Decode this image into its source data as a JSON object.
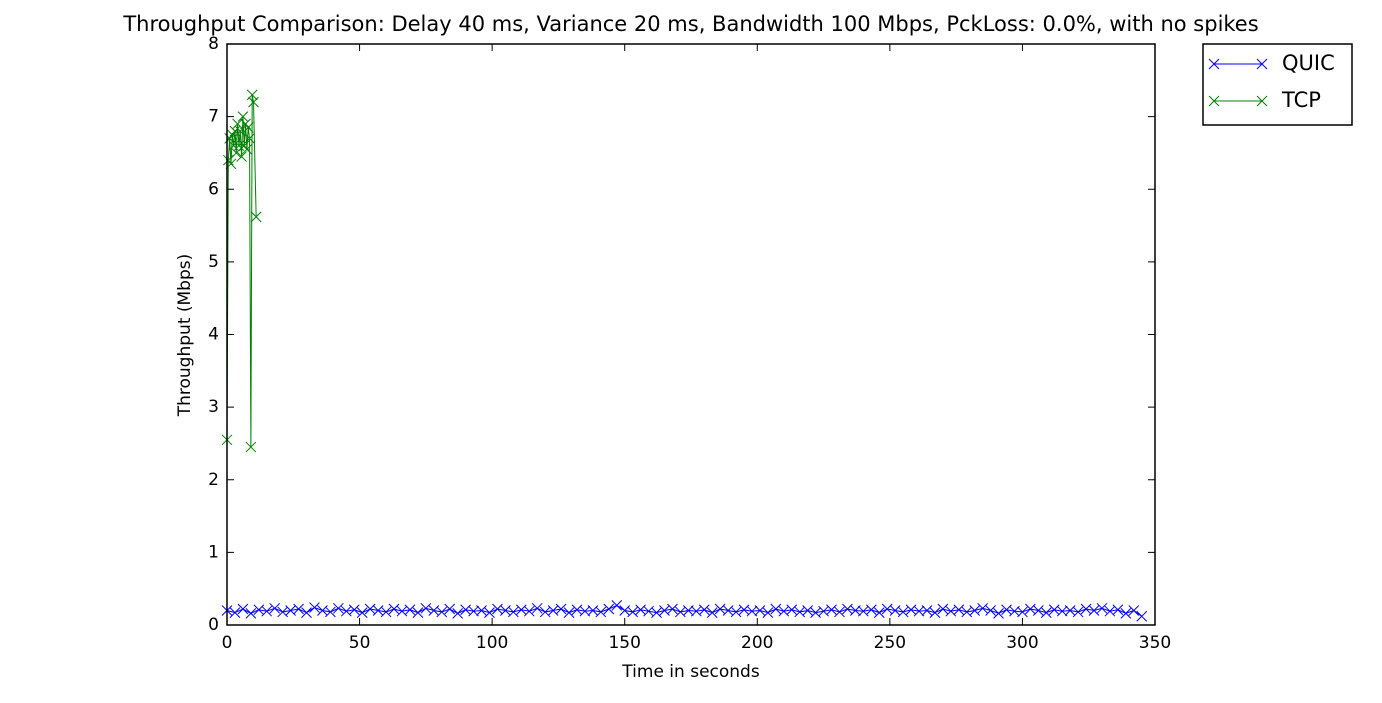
{
  "chart_data": {
    "type": "line",
    "title": "Throughput Comparison: Delay 40 ms, Variance 20 ms, Bandwidth 100 Mbps, PckLoss: 0.0%, with no spikes",
    "xlabel": "Time in seconds",
    "ylabel": "Throughput (Mbps)",
    "xlim": [
      0,
      350
    ],
    "ylim": [
      0,
      8
    ],
    "xticks": [
      0,
      50,
      100,
      150,
      200,
      250,
      300,
      350
    ],
    "yticks": [
      0,
      1,
      2,
      3,
      4,
      5,
      6,
      7,
      8
    ],
    "legend": "outside-upper-right",
    "series": [
      {
        "name": "QUIC",
        "color": "#0000ff",
        "x": [
          0,
          3,
          6,
          9,
          12,
          15,
          18,
          21,
          24,
          27,
          30,
          33,
          36,
          39,
          42,
          45,
          48,
          51,
          54,
          57,
          60,
          63,
          66,
          69,
          72,
          75,
          78,
          81,
          84,
          87,
          90,
          93,
          96,
          99,
          102,
          105,
          108,
          111,
          114,
          117,
          120,
          123,
          126,
          129,
          132,
          135,
          138,
          141,
          144,
          147,
          150,
          153,
          156,
          159,
          162,
          165,
          168,
          171,
          174,
          177,
          180,
          183,
          186,
          189,
          192,
          195,
          198,
          201,
          204,
          207,
          210,
          213,
          216,
          219,
          222,
          225,
          228,
          231,
          234,
          237,
          240,
          243,
          246,
          249,
          252,
          255,
          258,
          261,
          264,
          267,
          270,
          273,
          276,
          279,
          282,
          285,
          288,
          291,
          294,
          297,
          300,
          303,
          306,
          309,
          312,
          315,
          318,
          321,
          324,
          327,
          330,
          333,
          336,
          339,
          342,
          345
        ],
        "values": [
          0.2,
          0.17,
          0.22,
          0.16,
          0.21,
          0.19,
          0.23,
          0.18,
          0.2,
          0.22,
          0.17,
          0.24,
          0.2,
          0.18,
          0.23,
          0.19,
          0.21,
          0.17,
          0.22,
          0.2,
          0.18,
          0.22,
          0.19,
          0.21,
          0.17,
          0.23,
          0.2,
          0.18,
          0.22,
          0.16,
          0.21,
          0.19,
          0.2,
          0.17,
          0.22,
          0.2,
          0.18,
          0.21,
          0.19,
          0.23,
          0.18,
          0.2,
          0.22,
          0.17,
          0.21,
          0.19,
          0.2,
          0.18,
          0.22,
          0.27,
          0.2,
          0.18,
          0.21,
          0.19,
          0.17,
          0.2,
          0.22,
          0.18,
          0.2,
          0.19,
          0.21,
          0.17,
          0.22,
          0.2,
          0.18,
          0.21,
          0.19,
          0.2,
          0.17,
          0.22,
          0.19,
          0.21,
          0.18,
          0.2,
          0.17,
          0.19,
          0.21,
          0.18,
          0.22,
          0.2,
          0.19,
          0.21,
          0.17,
          0.22,
          0.2,
          0.18,
          0.21,
          0.19,
          0.2,
          0.17,
          0.22,
          0.19,
          0.21,
          0.18,
          0.2,
          0.23,
          0.2,
          0.16,
          0.21,
          0.19,
          0.18,
          0.22,
          0.2,
          0.17,
          0.21,
          0.19,
          0.2,
          0.18,
          0.22,
          0.2,
          0.23,
          0.19,
          0.21,
          0.16,
          0.2,
          0.12
        ]
      },
      {
        "name": "TCP",
        "color": "#008000",
        "x": [
          0,
          0.5,
          1,
          1.5,
          2,
          2.5,
          3,
          3.5,
          4,
          4.5,
          5,
          5.5,
          6,
          6.5,
          7,
          7.5,
          8,
          8.5,
          9,
          9.5,
          10,
          11
        ],
        "values": [
          2.55,
          6.4,
          6.7,
          6.35,
          6.75,
          6.6,
          6.8,
          6.5,
          6.9,
          6.6,
          6.8,
          6.45,
          7.0,
          6.6,
          6.9,
          6.55,
          6.85,
          6.7,
          2.45,
          7.3,
          7.2,
          5.62
        ]
      }
    ]
  }
}
